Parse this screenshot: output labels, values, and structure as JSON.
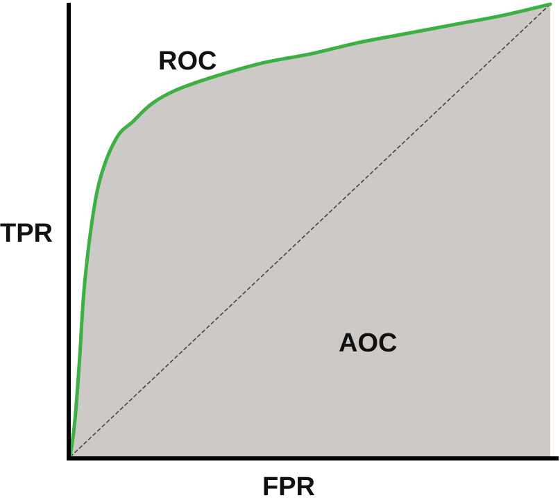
{
  "chart_data": {
    "type": "area",
    "title": "",
    "xlabel": "FPR",
    "ylabel": "TPR",
    "xlim": [
      0,
      1
    ],
    "ylim": [
      0,
      1
    ],
    "grid": false,
    "annotations": {
      "curve_label": "ROC",
      "area_label": "AOC"
    },
    "series": [
      {
        "style": "curve",
        "color": "#3cb043",
        "x": [
          0,
          0.01,
          0.02,
          0.03,
          0.05,
          0.07,
          0.1,
          0.13,
          0.17,
          0.22,
          0.3,
          0.4,
          0.5,
          0.6,
          0.7,
          0.8,
          0.9,
          1.0
        ],
        "y": [
          0,
          0.08,
          0.22,
          0.38,
          0.55,
          0.64,
          0.71,
          0.74,
          0.78,
          0.81,
          0.84,
          0.87,
          0.89,
          0.915,
          0.935,
          0.955,
          0.975,
          1.0
        ]
      },
      {
        "style": "diagonal",
        "color": "#444444",
        "x": [
          0,
          1
        ],
        "y": [
          0,
          1
        ]
      }
    ],
    "colors": {
      "area_fill": "#cdc9c6",
      "axis": "#000000"
    }
  }
}
